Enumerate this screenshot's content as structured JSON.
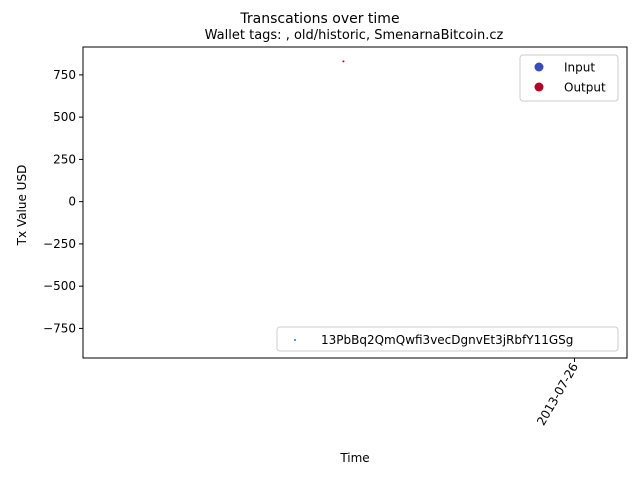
{
  "chart_data": {
    "type": "scatter",
    "title": "Transcations over time",
    "subtitle": "Wallet tags: , old/historic, SmenarnaBitcoin.cz",
    "xlabel": "Time",
    "ylabel": "Tx Value USD",
    "ylim": [
      -925,
      915
    ],
    "y_ticks": [
      -750,
      -500,
      -250,
      0,
      250,
      500,
      750
    ],
    "y_tick_labels": [
      "−750",
      "−500",
      "−250",
      "0",
      "250",
      "500",
      "750"
    ],
    "x_ticks": [
      "2013-07-26"
    ],
    "grid": false,
    "series": [
      {
        "name": "Output",
        "color": "#b40426",
        "points": [
          {
            "x": "2013-07-15",
            "y": 830
          }
        ]
      }
    ],
    "legends": [
      {
        "placement": "top-right",
        "entries": [
          {
            "label": "Input",
            "color": "#3b4cc0",
            "marker": "circle"
          },
          {
            "label": "Output",
            "color": "#b40426",
            "marker": "circle"
          }
        ]
      },
      {
        "placement": "bottom-right",
        "entries": [
          {
            "label": "13PbBq2QmQwfi3vecDgnvEt3jRbfY11GSg",
            "color": "#1f77b4",
            "marker": "dot"
          }
        ]
      }
    ]
  }
}
